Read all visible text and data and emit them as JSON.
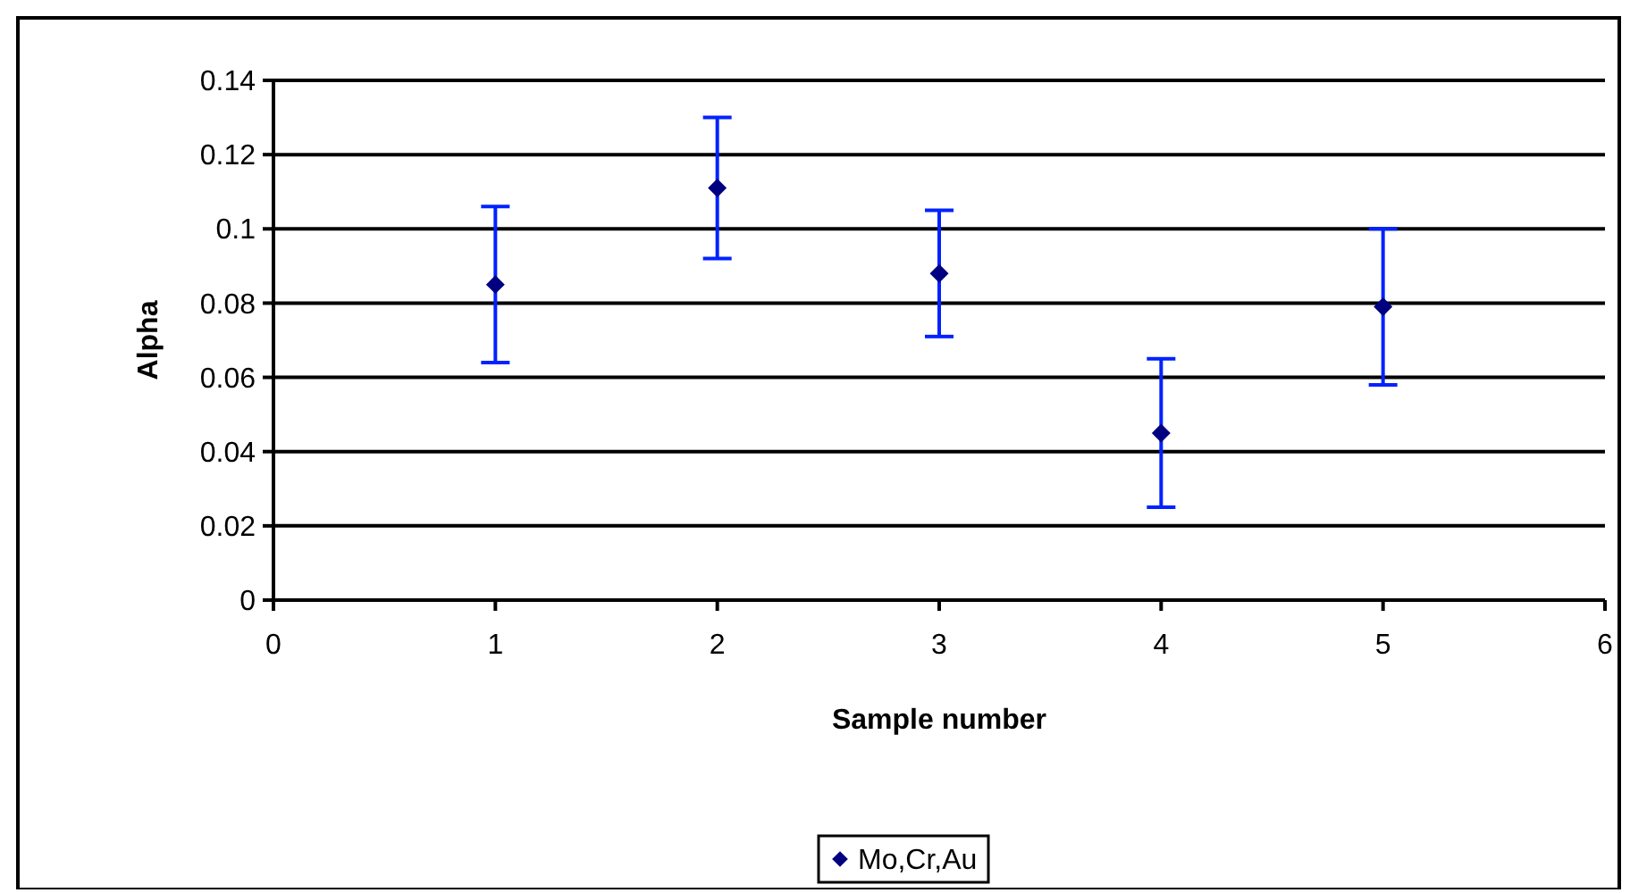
{
  "chart_data": {
    "type": "scatter",
    "xlabel": "Sample number",
    "ylabel": "Alpha",
    "x": [
      1,
      2,
      3,
      4,
      5
    ],
    "series": [
      {
        "name": "Mo,Cr,Au",
        "color": "#000080",
        "values": [
          0.085,
          0.111,
          0.088,
          0.045,
          0.079
        ],
        "errors": [
          0.021,
          0.019,
          0.017,
          0.02,
          0.021
        ]
      }
    ],
    "xlim": [
      0,
      6
    ],
    "xticks": [
      0,
      1,
      2,
      3,
      4,
      5,
      6
    ],
    "ylim": [
      0,
      0.14
    ],
    "yticks": [
      0,
      0.02,
      0.04,
      0.06,
      0.08,
      0.1,
      0.12,
      0.14
    ],
    "grid": "y",
    "legend": "bottom",
    "marker": "diamond"
  }
}
